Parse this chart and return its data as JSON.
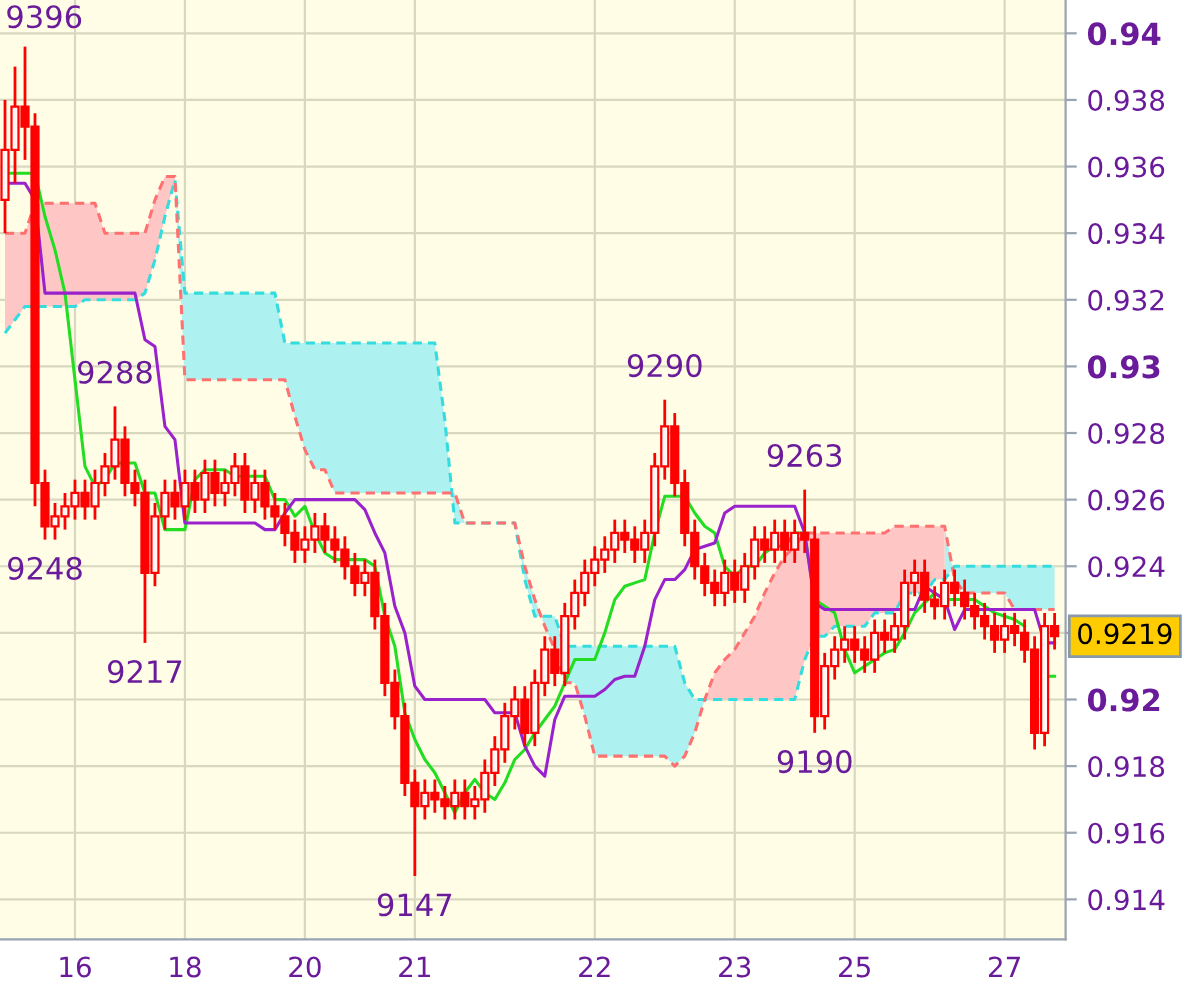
{
  "chart_data": {
    "type": "candlestick",
    "categories": [
      null,
      null,
      null,
      null,
      null,
      null,
      null,
      "16",
      null,
      null,
      null,
      null,
      null,
      null,
      null,
      null,
      null,
      null,
      "18",
      null,
      null,
      null,
      null,
      null,
      null,
      null,
      null,
      null,
      null,
      null,
      "20",
      null,
      null,
      null,
      null,
      null,
      null,
      null,
      null,
      null,
      null,
      "21",
      null,
      null,
      null,
      null,
      null,
      null,
      null,
      null,
      null,
      null,
      null,
      null,
      null,
      null,
      null,
      null,
      null,
      "22",
      null,
      null,
      null,
      null,
      null,
      null,
      null,
      null,
      null,
      null,
      null,
      null,
      null,
      "23",
      null,
      null,
      null,
      null,
      null,
      null,
      null,
      null,
      null,
      null,
      null,
      "25",
      null,
      null,
      null,
      null,
      null,
      null,
      null,
      null,
      null,
      null,
      null,
      null,
      null,
      null,
      "27",
      null,
      null,
      null,
      null,
      null
    ],
    "ohlc": [
      [
        0.935,
        0.938,
        0.934,
        0.9365
      ],
      [
        0.9365,
        0.939,
        0.9355,
        0.9378
      ],
      [
        0.9378,
        0.9396,
        0.9362,
        0.9372
      ],
      [
        0.9372,
        0.9376,
        0.9258,
        0.9265
      ],
      [
        0.9265,
        0.9269,
        0.9248,
        0.9252
      ],
      [
        0.9252,
        0.9259,
        0.9248,
        0.9255
      ],
      [
        0.9255,
        0.9262,
        0.9251,
        0.9258
      ],
      [
        0.9258,
        0.9266,
        0.9254,
        0.9262
      ],
      [
        0.9262,
        0.9266,
        0.9254,
        0.9258
      ],
      [
        0.9258,
        0.9269,
        0.9254,
        0.9265
      ],
      [
        0.9265,
        0.9274,
        0.9261,
        0.927
      ],
      [
        0.927,
        0.9288,
        0.9266,
        0.9278
      ],
      [
        0.9278,
        0.9282,
        0.9261,
        0.9265
      ],
      [
        0.9265,
        0.9269,
        0.9258,
        0.9262
      ],
      [
        0.9262,
        0.9266,
        0.9217,
        0.9238
      ],
      [
        0.9238,
        0.9259,
        0.9234,
        0.9255
      ],
      [
        0.9255,
        0.9266,
        0.9251,
        0.9262
      ],
      [
        0.9262,
        0.9266,
        0.9254,
        0.9258
      ],
      [
        0.9258,
        0.9269,
        0.9254,
        0.9265
      ],
      [
        0.9265,
        0.9269,
        0.9256,
        0.926
      ],
      [
        0.926,
        0.9272,
        0.9256,
        0.9268
      ],
      [
        0.9268,
        0.9272,
        0.9258,
        0.9262
      ],
      [
        0.9262,
        0.9269,
        0.9258,
        0.9265
      ],
      [
        0.9265,
        0.9274,
        0.9261,
        0.927
      ],
      [
        0.927,
        0.9274,
        0.9256,
        0.926
      ],
      [
        0.926,
        0.9269,
        0.9256,
        0.9265
      ],
      [
        0.9265,
        0.9269,
        0.9254,
        0.9258
      ],
      [
        0.9258,
        0.9262,
        0.9251,
        0.9255
      ],
      [
        0.9255,
        0.9259,
        0.9246,
        0.925
      ],
      [
        0.925,
        0.9254,
        0.9241,
        0.9245
      ],
      [
        0.9245,
        0.9252,
        0.9241,
        0.9248
      ],
      [
        0.9248,
        0.9256,
        0.9244,
        0.9252
      ],
      [
        0.9252,
        0.9256,
        0.9244,
        0.9248
      ],
      [
        0.9248,
        0.9252,
        0.9241,
        0.9245
      ],
      [
        0.9245,
        0.9249,
        0.9236,
        0.924
      ],
      [
        0.924,
        0.9244,
        0.9231,
        0.9235
      ],
      [
        0.9235,
        0.9242,
        0.9231,
        0.9238
      ],
      [
        0.9238,
        0.9242,
        0.9221,
        0.9225
      ],
      [
        0.9225,
        0.9229,
        0.9201,
        0.9205
      ],
      [
        0.9205,
        0.9209,
        0.9191,
        0.9195
      ],
      [
        0.9195,
        0.9199,
        0.9171,
        0.9175
      ],
      [
        0.9175,
        0.9179,
        0.9147,
        0.9168
      ],
      [
        0.9168,
        0.9176,
        0.9164,
        0.9172
      ],
      [
        0.9172,
        0.9176,
        0.9166,
        0.917
      ],
      [
        0.917,
        0.9174,
        0.9164,
        0.9168
      ],
      [
        0.9168,
        0.9176,
        0.9164,
        0.9172
      ],
      [
        0.9172,
        0.9176,
        0.9164,
        0.9168
      ],
      [
        0.9168,
        0.9174,
        0.9164,
        0.917
      ],
      [
        0.917,
        0.9182,
        0.9166,
        0.9178
      ],
      [
        0.9178,
        0.9189,
        0.9174,
        0.9185
      ],
      [
        0.9185,
        0.9199,
        0.9181,
        0.9195
      ],
      [
        0.9195,
        0.9204,
        0.9191,
        0.92
      ],
      [
        0.92,
        0.9204,
        0.9186,
        0.919
      ],
      [
        0.919,
        0.9209,
        0.9186,
        0.9205
      ],
      [
        0.9205,
        0.9219,
        0.9201,
        0.9215
      ],
      [
        0.9215,
        0.9219,
        0.9204,
        0.9208
      ],
      [
        0.9208,
        0.9229,
        0.9204,
        0.9225
      ],
      [
        0.9225,
        0.9236,
        0.9221,
        0.9232
      ],
      [
        0.9232,
        0.9242,
        0.9228,
        0.9238
      ],
      [
        0.9238,
        0.9246,
        0.9234,
        0.9242
      ],
      [
        0.9242,
        0.9249,
        0.9238,
        0.9245
      ],
      [
        0.9245,
        0.9254,
        0.9241,
        0.925
      ],
      [
        0.925,
        0.9254,
        0.9244,
        0.9248
      ],
      [
        0.9248,
        0.9252,
        0.9241,
        0.9245
      ],
      [
        0.9245,
        0.9254,
        0.9241,
        0.925
      ],
      [
        0.925,
        0.9274,
        0.9246,
        0.927
      ],
      [
        0.927,
        0.929,
        0.9266,
        0.9282
      ],
      [
        0.9282,
        0.9286,
        0.9261,
        0.9265
      ],
      [
        0.9265,
        0.9269,
        0.9246,
        0.925
      ],
      [
        0.925,
        0.9254,
        0.9236,
        0.924
      ],
      [
        0.924,
        0.9244,
        0.9231,
        0.9235
      ],
      [
        0.9235,
        0.9239,
        0.9228,
        0.9232
      ],
      [
        0.9232,
        0.9242,
        0.9228,
        0.9238
      ],
      [
        0.9238,
        0.9242,
        0.9229,
        0.9233
      ],
      [
        0.9233,
        0.9244,
        0.9229,
        0.924
      ],
      [
        0.924,
        0.9252,
        0.9236,
        0.9248
      ],
      [
        0.9248,
        0.9252,
        0.9241,
        0.9245
      ],
      [
        0.9245,
        0.9254,
        0.9241,
        0.925
      ],
      [
        0.925,
        0.9254,
        0.9241,
        0.9245
      ],
      [
        0.9245,
        0.9254,
        0.9241,
        0.925
      ],
      [
        0.925,
        0.9263,
        0.9244,
        0.9248
      ],
      [
        0.9248,
        0.9252,
        0.919,
        0.9195
      ],
      [
        0.9195,
        0.9214,
        0.9191,
        0.921
      ],
      [
        0.921,
        0.9219,
        0.9206,
        0.9215
      ],
      [
        0.9215,
        0.9222,
        0.9211,
        0.9218
      ],
      [
        0.9218,
        0.9222,
        0.9211,
        0.9215
      ],
      [
        0.9215,
        0.9219,
        0.9208,
        0.9212
      ],
      [
        0.9212,
        0.9224,
        0.9208,
        0.922
      ],
      [
        0.922,
        0.9224,
        0.9214,
        0.9218
      ],
      [
        0.9218,
        0.9226,
        0.9214,
        0.9222
      ],
      [
        0.9222,
        0.9239,
        0.9218,
        0.9235
      ],
      [
        0.9235,
        0.9242,
        0.9231,
        0.9238
      ],
      [
        0.9238,
        0.9242,
        0.9226,
        0.923
      ],
      [
        0.923,
        0.9234,
        0.9224,
        0.9228
      ],
      [
        0.9228,
        0.9239,
        0.9224,
        0.9235
      ],
      [
        0.9235,
        0.9239,
        0.9228,
        0.9232
      ],
      [
        0.9232,
        0.9236,
        0.9224,
        0.9228
      ],
      [
        0.9228,
        0.9232,
        0.9221,
        0.9225
      ],
      [
        0.9225,
        0.9229,
        0.9218,
        0.9222
      ],
      [
        0.9222,
        0.9226,
        0.9214,
        0.9218
      ],
      [
        0.9218,
        0.9226,
        0.9214,
        0.9222
      ],
      [
        0.9222,
        0.9226,
        0.9216,
        0.922
      ],
      [
        0.922,
        0.9224,
        0.9211,
        0.9215
      ],
      [
        0.9215,
        0.9219,
        0.9185,
        0.919
      ],
      [
        0.919,
        0.9226,
        0.9186,
        0.9222
      ],
      [
        0.9222,
        0.9226,
        0.9215,
        0.9219
      ]
    ],
    "series": [
      {
        "type": "line",
        "color": "#33dddd",
        "line_style": "dashed",
        "values": [
          0.931,
          0.9314,
          0.9318,
          0.9318,
          0.9318,
          0.9318,
          0.9318,
          0.9318,
          0.932,
          0.932,
          0.932,
          0.932,
          0.932,
          0.932,
          0.9322,
          0.9332,
          0.9345,
          0.9356,
          0.9322,
          0.9322,
          0.9322,
          0.9322,
          0.9322,
          0.9322,
          0.9322,
          0.9322,
          0.9322,
          0.9322,
          0.9307,
          0.9307,
          0.9307,
          0.9307,
          0.9307,
          0.9307,
          0.9307,
          0.9307,
          0.9307,
          0.9307,
          0.9307,
          0.9307,
          0.9307,
          0.9307,
          0.9307,
          0.9307,
          0.9284,
          0.9253,
          0.9253,
          0.9253,
          0.9253,
          0.9253,
          0.9253,
          0.9253,
          0.9236,
          0.9225,
          0.9225,
          0.9225,
          0.9216,
          0.9216,
          0.9216,
          0.9216,
          0.9216,
          0.9216,
          0.9216,
          0.9216,
          0.9216,
          0.9216,
          0.9216,
          0.9216,
          0.9205,
          0.92,
          0.92,
          0.92,
          0.92,
          0.92,
          0.92,
          0.92,
          0.92,
          0.92,
          0.92,
          0.92,
          0.9212,
          0.9219,
          0.9219,
          0.9222,
          0.9222,
          0.9222,
          0.9222,
          0.9226,
          0.9226,
          0.9226,
          0.9232,
          0.9232,
          0.9232,
          0.9236,
          0.9236,
          0.924,
          0.924,
          0.924,
          0.924,
          0.924,
          0.924,
          0.924,
          0.924,
          0.924,
          0.924,
          0.924
        ],
        "lower": [
          null,
          null,
          null,
          null,
          null,
          null,
          null,
          null,
          null,
          null,
          null,
          null,
          null,
          null,
          null,
          null,
          null,
          0.9357,
          0.9296,
          0.9296,
          0.9296,
          0.9296,
          0.9296,
          0.9296,
          0.9296,
          0.9296,
          0.9296,
          0.9296,
          0.9296,
          0.9285,
          0.9275,
          0.9269,
          0.9269,
          0.9262,
          0.9262,
          0.9262,
          0.9262,
          0.9262,
          0.9262,
          0.9262,
          0.9262,
          0.9262,
          0.9262,
          0.9262,
          0.9262,
          0.9262,
          0.9253,
          0.9253,
          0.9253,
          0.9253,
          0.9253,
          0.9253,
          0.924,
          0.923,
          0.9222,
          0.9215,
          0.9205,
          0.9205,
          0.9195,
          0.9183,
          0.9183,
          0.9183,
          0.9183,
          0.9183,
          0.9183,
          0.9183,
          0.9183,
          0.918,
          0.9183,
          0.919,
          0.92,
          null,
          null,
          null,
          null,
          null,
          null,
          null,
          null,
          null,
          null,
          null,
          null,
          null,
          null,
          null,
          null,
          null,
          null,
          null,
          null,
          null,
          null,
          null,
          0.9252,
          0.9236,
          0.9232,
          0.9232,
          0.9232,
          0.9232,
          0.9232,
          0.9227,
          0.9227,
          0.9227,
          0.9227,
          0.9227
        ],
        "upper": [
          null,
          null,
          null,
          null,
          null,
          null,
          null,
          null,
          null,
          null,
          null,
          null,
          null,
          null,
          null,
          null,
          null,
          0.9356,
          0.9322,
          0.9322,
          0.9322,
          0.9322,
          0.9322,
          0.9322,
          0.9322,
          0.9322,
          0.9322,
          0.9322,
          0.9307,
          0.9307,
          0.9307,
          0.9307,
          0.9307,
          0.9307,
          0.9307,
          0.9307,
          0.9307,
          0.9307,
          0.9307,
          0.9307,
          0.9307,
          0.9307,
          0.9307,
          0.9307,
          0.9284,
          0.9253,
          0.9253,
          0.9253,
          0.9253,
          0.9253,
          0.9253,
          0.9253,
          0.9236,
          0.9225,
          0.9225,
          0.9225,
          0.9216,
          0.9216,
          0.9216,
          0.9216,
          0.9216,
          0.9216,
          0.9216,
          0.9216,
          0.9216,
          0.9216,
          0.9216,
          0.9216,
          0.9205,
          0.92,
          0.92,
          null,
          null,
          null,
          null,
          null,
          null,
          null,
          null,
          null,
          null,
          null,
          null,
          null,
          null,
          null,
          null,
          null,
          null,
          null,
          null,
          null,
          null,
          null,
          0.9236,
          0.924,
          0.924,
          0.924,
          0.924,
          0.924,
          0.924,
          0.924,
          0.924,
          0.924,
          0.924,
          0.924
        ]
      },
      {
        "type": "line",
        "color": "#ff7070",
        "line_style": "dashed",
        "values": [
          0.934,
          0.934,
          0.934,
          0.9349,
          0.9349,
          0.9349,
          0.9349,
          0.9349,
          0.9349,
          0.9349,
          0.934,
          0.934,
          0.934,
          0.934,
          0.934,
          0.935,
          0.9357,
          0.9357,
          0.9296,
          0.9296,
          0.9296,
          0.9296,
          0.9296,
          0.9296,
          0.9296,
          0.9296,
          0.9296,
          0.9296,
          0.9296,
          0.9285,
          0.9275,
          0.9269,
          0.9269,
          0.9262,
          0.9262,
          0.9262,
          0.9262,
          0.9262,
          0.9262,
          0.9262,
          0.9262,
          0.9262,
          0.9262,
          0.9262,
          0.9262,
          0.9262,
          0.9253,
          0.9253,
          0.9253,
          0.9253,
          0.9253,
          0.9253,
          0.924,
          0.923,
          0.9222,
          0.9215,
          0.9205,
          0.9205,
          0.9195,
          0.9183,
          0.9183,
          0.9183,
          0.9183,
          0.9183,
          0.9183,
          0.9183,
          0.9183,
          0.918,
          0.9183,
          0.919,
          0.92,
          0.9208,
          0.9212,
          0.9215,
          0.922,
          0.9225,
          0.9232,
          0.9238,
          0.9243,
          0.9246,
          0.925,
          0.925,
          0.925,
          0.925,
          0.925,
          0.925,
          0.925,
          0.925,
          0.925,
          0.9252,
          0.9252,
          0.9252,
          0.9252,
          0.9252,
          0.9252,
          0.9236,
          0.9232,
          0.9232,
          0.9232,
          0.9232,
          0.9232,
          0.9227,
          0.9227,
          0.9227,
          0.9227,
          0.9227
        ],
        "lower": [
          0.931,
          0.9314,
          0.9318,
          0.9318,
          0.9318,
          0.9318,
          0.9318,
          0.9318,
          0.932,
          0.932,
          0.932,
          0.932,
          0.932,
          0.932,
          0.9322,
          0.9332,
          0.9345,
          0.9356,
          null,
          null,
          null,
          null,
          null,
          null,
          null,
          null,
          null,
          null,
          null,
          null,
          null,
          null,
          null,
          null,
          null,
          null,
          null,
          null,
          null,
          null,
          null,
          null,
          null,
          null,
          null,
          null,
          null,
          null,
          null,
          null,
          null,
          null,
          null,
          null,
          null,
          null,
          null,
          null,
          null,
          null,
          null,
          null,
          null,
          null,
          null,
          null,
          null,
          null,
          null,
          null,
          0.92,
          0.92,
          0.92,
          0.92,
          0.92,
          0.92,
          0.92,
          0.92,
          0.92,
          0.92,
          0.9212,
          0.9219,
          0.9219,
          0.9222,
          0.9222,
          0.9222,
          0.9222,
          0.9226,
          0.9226,
          0.9226,
          0.9232,
          0.9232,
          0.9232,
          0.9236,
          0.9236,
          null,
          null,
          null,
          null,
          null,
          null,
          null,
          null,
          null,
          null,
          null
        ],
        "upper": [
          0.934,
          0.934,
          0.934,
          0.9349,
          0.9349,
          0.9349,
          0.9349,
          0.9349,
          0.9349,
          0.9349,
          0.934,
          0.934,
          0.934,
          0.934,
          0.934,
          0.935,
          0.9357,
          0.9357,
          null,
          null,
          null,
          null,
          null,
          null,
          null,
          null,
          null,
          null,
          null,
          null,
          null,
          null,
          null,
          null,
          null,
          null,
          null,
          null,
          null,
          null,
          null,
          null,
          null,
          null,
          null,
          null,
          null,
          null,
          null,
          null,
          null,
          null,
          null,
          null,
          null,
          null,
          null,
          null,
          null,
          null,
          null,
          null,
          null,
          null,
          null,
          null,
          null,
          null,
          null,
          null,
          0.92,
          0.9208,
          0.9212,
          0.9215,
          0.922,
          0.9225,
          0.9232,
          0.9238,
          0.9243,
          0.9246,
          0.925,
          0.925,
          0.925,
          0.925,
          0.925,
          0.925,
          0.925,
          0.925,
          0.925,
          0.9252,
          0.9252,
          0.9252,
          0.9252,
          0.9252,
          0.9252,
          null,
          null,
          null,
          null,
          null,
          null,
          null,
          null,
          null,
          null,
          null
        ]
      },
      {
        "type": "line",
        "color": "#22dd22",
        "line_style": "solid",
        "values": [
          0.9358,
          0.9358,
          0.9358,
          0.9358,
          0.9345,
          0.9335,
          0.9322,
          0.9296,
          0.927,
          0.9264,
          0.9266,
          0.9271,
          0.9271,
          0.9271,
          0.9262,
          0.9262,
          0.9251,
          0.9251,
          0.9251,
          0.9266,
          0.9269,
          0.9269,
          0.9269,
          0.9267,
          0.9267,
          0.9267,
          0.9267,
          0.926,
          0.926,
          0.9255,
          0.9258,
          0.925,
          0.9244,
          0.9242,
          0.9242,
          0.9242,
          0.9242,
          0.924,
          0.9225,
          0.9216,
          0.9196,
          0.9188,
          0.9182,
          0.9178,
          0.9172,
          0.9166,
          0.9172,
          0.9176,
          0.9172,
          0.917,
          0.9175,
          0.9182,
          0.9185,
          0.919,
          0.9194,
          0.9198,
          0.9205,
          0.9212,
          0.9212,
          0.9212,
          0.922,
          0.923,
          0.9234,
          0.9235,
          0.9236,
          0.925,
          0.9261,
          0.9261,
          0.9261,
          0.9256,
          0.9252,
          0.925,
          0.924,
          0.9237,
          0.924,
          0.924,
          0.9244,
          0.9246,
          0.9246,
          0.925,
          0.925,
          0.923,
          0.9228,
          0.9226,
          0.9215,
          0.9208,
          0.921,
          0.9212,
          0.9214,
          0.9215,
          0.922,
          0.9226,
          0.9229,
          0.9232,
          0.923,
          0.923,
          0.923,
          0.923,
          0.9228,
          0.9226,
          0.9225,
          0.9224,
          0.9222,
          null,
          0.9207,
          0.9207
        ]
      },
      {
        "type": "line",
        "color": "#9922cc",
        "line_style": "solid",
        "values": [
          0.9355,
          0.9355,
          0.9355,
          0.935,
          0.9322,
          0.9322,
          0.9322,
          0.9322,
          0.9322,
          0.9322,
          0.9322,
          0.9322,
          0.9322,
          0.9322,
          0.9308,
          0.9306,
          0.9282,
          0.9278,
          0.9253,
          0.9253,
          0.9253,
          0.9253,
          0.9253,
          0.9253,
          0.9253,
          0.9253,
          0.9251,
          0.9251,
          0.9256,
          0.926,
          0.926,
          0.926,
          0.926,
          0.926,
          0.926,
          0.926,
          0.9257,
          0.925,
          0.9244,
          0.9228,
          0.922,
          0.9204,
          0.92,
          0.92,
          0.92,
          0.92,
          0.92,
          0.92,
          0.92,
          0.9196,
          0.9196,
          0.9196,
          0.9186,
          0.918,
          0.9177,
          0.9194,
          0.9201,
          0.9201,
          0.9201,
          0.9201,
          0.9203,
          0.9206,
          0.9207,
          0.9207,
          0.9216,
          0.923,
          0.9236,
          0.9236,
          0.9239,
          0.9245,
          0.9246,
          0.9247,
          0.9256,
          0.9258,
          0.9258,
          0.9258,
          0.9258,
          0.9258,
          0.9258,
          0.9258,
          0.925,
          0.9229,
          0.9227,
          0.9227,
          0.9227,
          0.9227,
          0.9227,
          0.9227,
          0.9227,
          0.9227,
          0.9227,
          0.9227,
          0.9234,
          0.9232,
          0.923,
          0.9221,
          0.9227,
          0.9227,
          0.9227,
          0.9227,
          0.9227,
          0.9227,
          0.9227,
          0.9227,
          0.9217,
          0.9217
        ]
      }
    ],
    "ylim": [
      0.9128,
      0.941
    ],
    "yticks": [
      {
        "value": 0.914,
        "label": "0.914"
      },
      {
        "value": 0.916,
        "label": "0.916"
      },
      {
        "value": 0.918,
        "label": "0.918"
      },
      {
        "value": 0.92,
        "label": "0.92"
      },
      {
        "value": 0.922,
        "label": null
      },
      {
        "value": 0.924,
        "label": "0.924"
      },
      {
        "value": 0.926,
        "label": "0.926"
      },
      {
        "value": 0.928,
        "label": "0.928"
      },
      {
        "value": 0.93,
        "label": "0.93"
      },
      {
        "value": 0.932,
        "label": "0.932"
      },
      {
        "value": 0.934,
        "label": "0.934"
      },
      {
        "value": 0.936,
        "label": "0.936"
      },
      {
        "value": 0.938,
        "label": "0.938"
      },
      {
        "value": 0.94,
        "label": "0.94"
      }
    ],
    "annotations": [
      "9396",
      "0.9219",
      {
        "text": "9288",
        "y": 0.9288
      },
      {
        "text": "9248",
        "y": 0.9248
      },
      {
        "text": "9217",
        "y": 0.9217
      },
      {
        "text": "9147",
        "y": 0.9147
      },
      {
        "text": "9290",
        "y": 0.929
      },
      {
        "text": "9263",
        "y": 0.9263
      },
      {
        "text": "9190",
        "y": 0.919
      }
    ],
    "grid": true
  }
}
